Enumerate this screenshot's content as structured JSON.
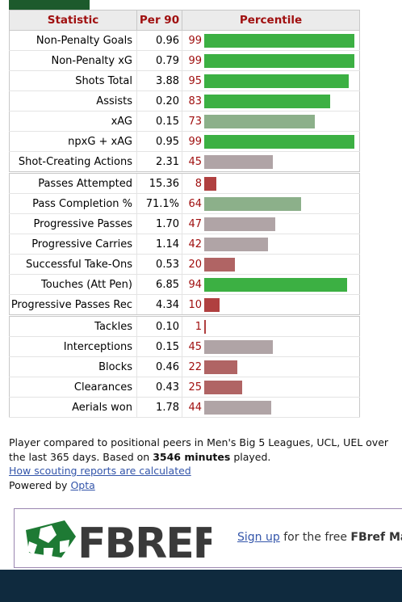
{
  "colors": {
    "high": "#3cb043",
    "mid_high": "#8cb08a",
    "mid": "#b0a4a6",
    "low": "#b06464",
    "very_low": "#b04040"
  },
  "table": {
    "headers": {
      "stat": "Statistic",
      "per90": "Per 90",
      "pct": "Percentile"
    },
    "groups": [
      [
        {
          "stat": "Non-Penalty Goals",
          "per90": "0.96",
          "pct": "99"
        },
        {
          "stat": "Non-Penalty xG",
          "per90": "0.79",
          "pct": "99"
        },
        {
          "stat": "Shots Total",
          "per90": "3.88",
          "pct": "95"
        },
        {
          "stat": "Assists",
          "per90": "0.20",
          "pct": "83"
        },
        {
          "stat": "xAG",
          "per90": "0.15",
          "pct": "73"
        },
        {
          "stat": "npxG + xAG",
          "per90": "0.95",
          "pct": "99"
        },
        {
          "stat": "Shot-Creating Actions",
          "per90": "2.31",
          "pct": "45"
        }
      ],
      [
        {
          "stat": "Passes Attempted",
          "per90": "15.36",
          "pct": "8"
        },
        {
          "stat": "Pass Completion %",
          "per90": "71.1%",
          "pct": "64"
        },
        {
          "stat": "Progressive Passes",
          "per90": "1.70",
          "pct": "47"
        },
        {
          "stat": "Progressive Carries",
          "per90": "1.14",
          "pct": "42"
        },
        {
          "stat": "Successful Take-Ons",
          "per90": "0.53",
          "pct": "20"
        },
        {
          "stat": "Touches (Att Pen)",
          "per90": "6.85",
          "pct": "94"
        },
        {
          "stat": "Progressive Passes Rec",
          "per90": "4.34",
          "pct": "10"
        }
      ],
      [
        {
          "stat": "Tackles",
          "per90": "0.10",
          "pct": "1"
        },
        {
          "stat": "Interceptions",
          "per90": "0.15",
          "pct": "45"
        },
        {
          "stat": "Blocks",
          "per90": "0.46",
          "pct": "22"
        },
        {
          "stat": "Clearances",
          "per90": "0.43",
          "pct": "25"
        },
        {
          "stat": "Aerials won",
          "per90": "1.78",
          "pct": "44"
        }
      ]
    ]
  },
  "notes": {
    "line1": "Player compared to positional peers in Men's Big 5 Leagues, UCL, UEL over the last 365 days. Based on ",
    "minutes": "3546 minutes",
    "line1_end": " played.",
    "how_link": "How scouting reports are calculated",
    "powered_prefix": "Powered by ",
    "opta_link": "Opta"
  },
  "banner": {
    "logo_text": "FBREF",
    "signup_link": "Sign up",
    "text": " for the free ",
    "brand_bold": "FBref Mai"
  }
}
